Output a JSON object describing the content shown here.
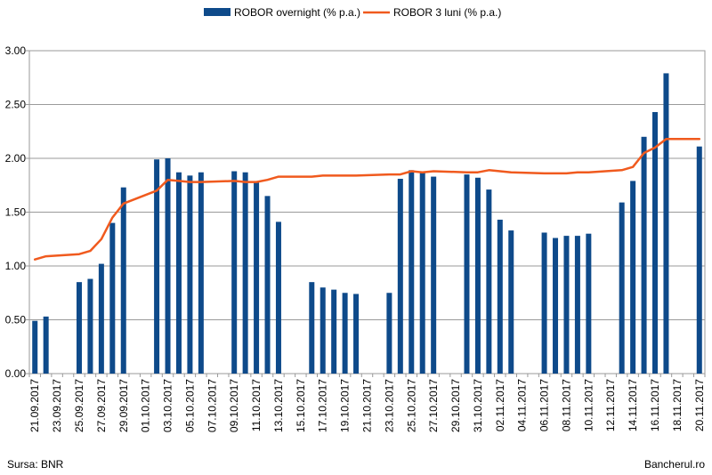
{
  "chart_data": {
    "type": "bar",
    "x": [
      "21.09.2017",
      "22.09.2017",
      "23.09.2017",
      "24.09.2017",
      "25.09.2017",
      "26.09.2017",
      "27.09.2017",
      "28.09.2017",
      "29.09.2017",
      "30.09.2017",
      "01.10.2017",
      "02.10.2017",
      "03.10.2017",
      "04.10.2017",
      "05.10.2017",
      "06.10.2017",
      "07.10.2017",
      "08.10.2017",
      "09.10.2017",
      "10.10.2017",
      "11.10.2017",
      "12.10.2017",
      "13.10.2017",
      "14.10.2017",
      "15.10.2017",
      "16.10.2017",
      "17.10.2017",
      "18.10.2017",
      "19.10.2017",
      "20.10.2017",
      "21.10.2017",
      "22.10.2017",
      "23.10.2017",
      "24.10.2017",
      "25.10.2017",
      "26.10.2017",
      "27.10.2017",
      "28.10.2017",
      "29.10.2017",
      "30.10.2017",
      "31.10.2017",
      "01.11.2017",
      "02.11.2017",
      "03.11.2017",
      "04.11.2017",
      "05.11.2017",
      "06.11.2017",
      "07.11.2017",
      "08.11.2017",
      "09.11.2017",
      "10.11.2017",
      "11.11.2017",
      "12.11.2017",
      "13.11.2017",
      "14.11.2017",
      "15.11.2017",
      "16.11.2017",
      "17.11.2017",
      "18.11.2017",
      "19.11.2017",
      "20.11.2017"
    ],
    "x_tick_labels": [
      "21.09.2017",
      "23.09.2017",
      "25.09.2017",
      "27.09.2017",
      "29.09.2017",
      "01.10.2017",
      "03.10.2017",
      "05.10.2017",
      "07.10.2017",
      "09.10.2017",
      "11.10.2017",
      "13.10.2017",
      "15.10.2017",
      "17.10.2017",
      "19.10.2017",
      "21.10.2017",
      "23.10.2017",
      "25.10.2017",
      "27.10.2017",
      "29.10.2017",
      "31.10.2017",
      "02.11.2017",
      "04.11.2017",
      "06.11.2017",
      "08.11.2017",
      "10.11.2017",
      "12.11.2017",
      "14.11.2017",
      "16.11.2017",
      "18.11.2017",
      "20.11.2017"
    ],
    "y_tick_labels": [
      "0.00",
      "0.50",
      "1.00",
      "1.50",
      "2.00",
      "2.50",
      "3.00"
    ],
    "ylim": [
      0,
      3
    ],
    "grid": true,
    "legend_position": "top",
    "series": [
      {
        "name": "ROBOR overnight (% p.a.)",
        "type": "bar",
        "color": "#0e4a8a",
        "values": [
          0.49,
          0.53,
          null,
          null,
          0.85,
          0.88,
          1.02,
          1.4,
          1.73,
          null,
          null,
          1.99,
          2.0,
          1.87,
          1.84,
          1.87,
          null,
          null,
          1.88,
          1.87,
          1.78,
          1.65,
          1.41,
          null,
          null,
          0.85,
          0.8,
          0.78,
          0.75,
          0.74,
          null,
          null,
          0.75,
          1.81,
          1.89,
          1.88,
          1.83,
          null,
          null,
          1.85,
          1.82,
          1.71,
          1.43,
          1.33,
          null,
          null,
          1.31,
          1.26,
          1.28,
          1.28,
          1.3,
          null,
          null,
          1.59,
          1.79,
          2.2,
          2.43,
          2.79,
          null,
          null,
          2.11
        ]
      },
      {
        "name": "ROBOR 3 luni (% p.a.)",
        "type": "line",
        "color": "#f05a1e",
        "values": [
          1.06,
          1.09,
          null,
          null,
          1.11,
          1.14,
          1.25,
          1.45,
          1.58,
          null,
          null,
          1.7,
          1.8,
          1.79,
          1.78,
          1.78,
          null,
          null,
          1.79,
          1.78,
          1.78,
          1.8,
          1.83,
          null,
          null,
          1.83,
          1.84,
          1.84,
          1.84,
          1.84,
          null,
          null,
          1.85,
          1.85,
          1.88,
          1.87,
          1.88,
          null,
          null,
          1.87,
          1.87,
          1.89,
          1.88,
          1.87,
          null,
          null,
          1.86,
          1.86,
          1.86,
          1.87,
          1.87,
          null,
          null,
          1.89,
          1.92,
          2.05,
          2.1,
          2.18,
          null,
          null,
          2.18
        ]
      }
    ]
  },
  "footer": {
    "source": "Sursa: BNR",
    "brand": "Bancherul.ro"
  }
}
